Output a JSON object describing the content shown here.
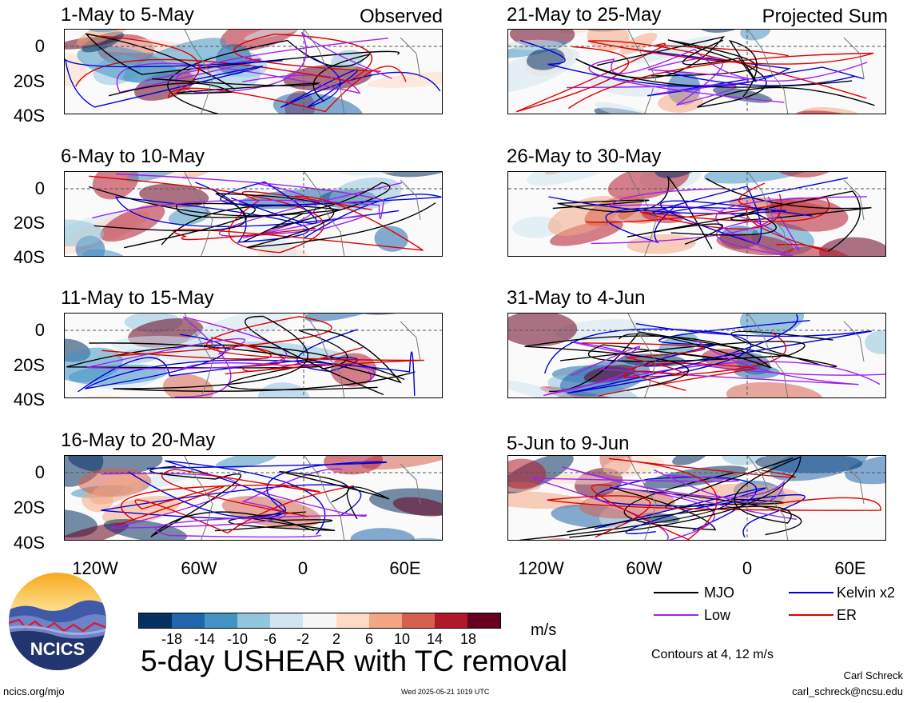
{
  "left_column": {
    "header_label": "Observed",
    "panels": [
      {
        "period": "1-May to 5-May"
      },
      {
        "period": "6-May to 10-May"
      },
      {
        "period": "11-May to 15-May"
      },
      {
        "period": "16-May to 20-May"
      }
    ]
  },
  "right_column": {
    "header_label": "Projected Sum",
    "panels": [
      {
        "period": "21-May to 25-May"
      },
      {
        "period": "26-May to 30-May"
      },
      {
        "period": "31-May to 4-Jun"
      },
      {
        "period": "5-Jun to 9-Jun"
      }
    ]
  },
  "y_axis_labels": [
    "0",
    "20S",
    "40S"
  ],
  "x_axis_labels": [
    "120W",
    "60W",
    "0",
    "60E"
  ],
  "legend": {
    "items": [
      {
        "label": "MJO",
        "color": "#000000"
      },
      {
        "label": "Kelvin x2",
        "color": "#0000dd"
      },
      {
        "label": "Low",
        "color": "#a020f0"
      },
      {
        "label": "ER",
        "color": "#dd0000"
      }
    ],
    "contours_note": "Contours at 4, 12 m/s"
  },
  "colorbar": {
    "unit": "m/s",
    "ticks": [
      "-18",
      "-14",
      "-10",
      "-6",
      "-2",
      "2",
      "6",
      "10",
      "14",
      "18"
    ],
    "colors": [
      "#053061",
      "#2166ac",
      "#4393c3",
      "#92c5de",
      "#d1e5f0",
      "#f7f7f7",
      "#fddbc7",
      "#f4a582",
      "#d6604d",
      "#b2182b",
      "#67001f"
    ]
  },
  "footer": {
    "title": "5-day USHEAR with TC removal",
    "logo_text": "NCICS",
    "website": "ncics.org/mjo",
    "timestamp": "Wed 2025-05-21 1019 UTC",
    "author": "Carl Schreck",
    "email": "carl_schreck@ncsu.edu"
  }
}
